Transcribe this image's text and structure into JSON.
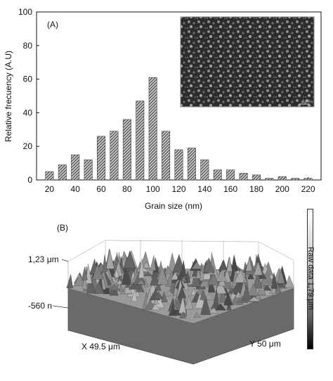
{
  "chart_data": [
    {
      "type": "bar",
      "panel_label": "(A)",
      "xlabel": "Grain size (nm)",
      "ylabel": "Relative frecuency (A.U)",
      "ylim": [
        0,
        100
      ],
      "yticks": [
        0,
        20,
        40,
        60,
        80,
        100
      ],
      "xticks": [
        20,
        40,
        60,
        80,
        100,
        120,
        140,
        160,
        180,
        200,
        220
      ],
      "x": [
        20,
        30,
        40,
        50,
        60,
        70,
        80,
        90,
        100,
        110,
        120,
        130,
        140,
        150,
        160,
        170,
        180,
        190,
        200,
        210,
        220
      ],
      "values": [
        5,
        9,
        15,
        12,
        26,
        29,
        36,
        47,
        61,
        29,
        18,
        19,
        12,
        6,
        6,
        4,
        3,
        1,
        2,
        1,
        1
      ],
      "bar_fill": "hatched dark gray",
      "inset": {
        "type": "SEM micrograph",
        "scale_bar_label": "1μm"
      }
    },
    {
      "type": "surface-3d",
      "panel_label": "(B)",
      "z_axis_labels": [
        "1,23 μm",
        "-560 n"
      ],
      "x_axis_label": "X 49.5 μm",
      "y_axis_label": "Y 50 μm",
      "colorbar_label": "Raw data 1,79 μm"
    }
  ]
}
